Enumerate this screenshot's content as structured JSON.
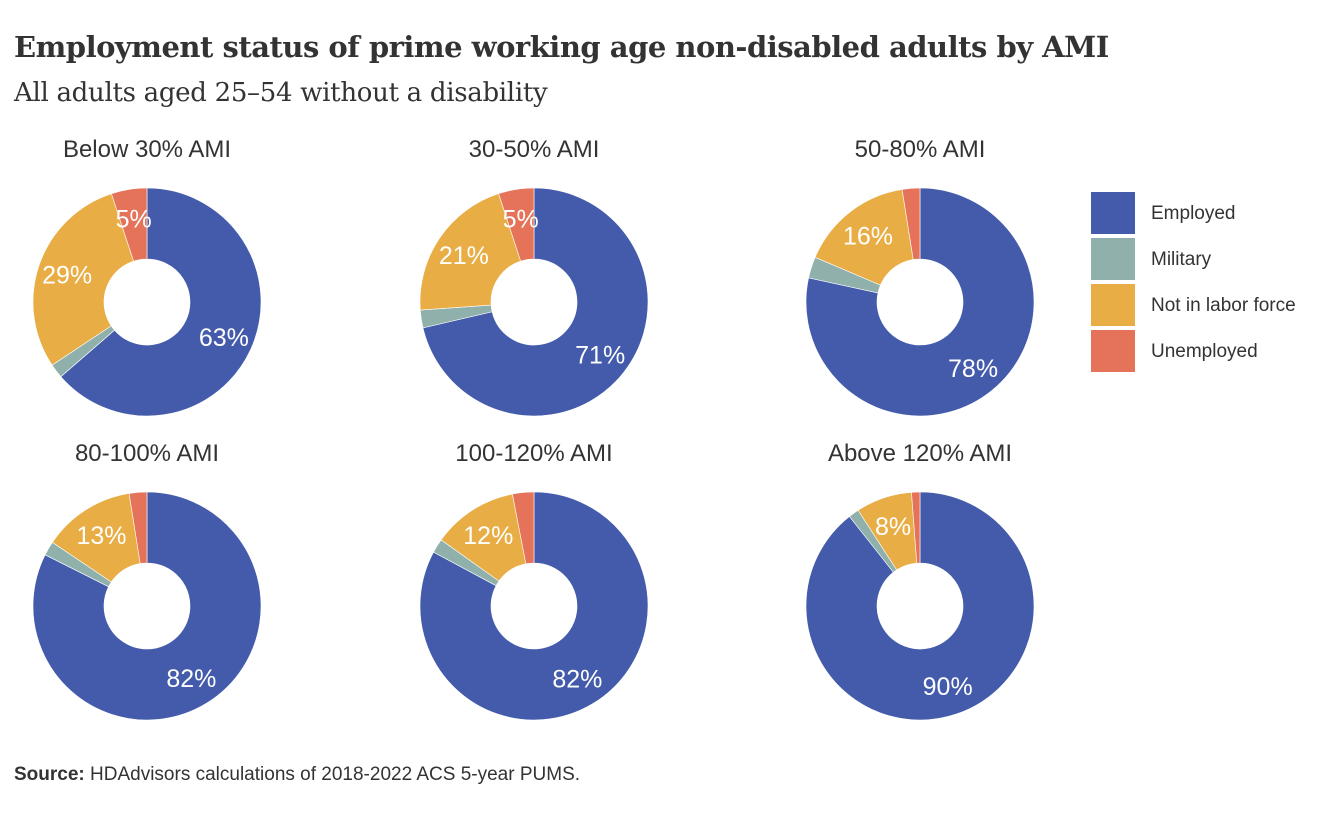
{
  "title": "Employment status of prime working age non-disabled adults by AMI",
  "subtitle": "All adults aged 25–54 without a disability",
  "source": {
    "label": "Source:",
    "text": " HDAdvisors  calculations of 2018-2022  ACS 5-year PUMS."
  },
  "colors": {
    "Employed": "#435BAA",
    "Military": "#8FB0AB",
    "Not in labor force": "#E8AD44",
    "Unemployed": "#E5735A"
  },
  "legend": [
    {
      "label": "Employed"
    },
    {
      "label": "Military"
    },
    {
      "label": "Not in labor force"
    },
    {
      "label": "Unemployed"
    }
  ],
  "chart_data": [
    {
      "type": "pie",
      "title": "Below 30% AMI",
      "categories": [
        "Employed",
        "Military",
        "Not in labor force",
        "Unemployed"
      ],
      "values": [
        63,
        2,
        29,
        5
      ],
      "data_labels": [
        "63%",
        "",
        "29%",
        "5%"
      ]
    },
    {
      "type": "pie",
      "title": "30-50% AMI",
      "categories": [
        "Employed",
        "Military",
        "Not in labor force",
        "Unemployed"
      ],
      "values": [
        71,
        2.5,
        21,
        5
      ],
      "data_labels": [
        "71%",
        "",
        "21%",
        "5%"
      ]
    },
    {
      "type": "pie",
      "title": "50-80% AMI",
      "categories": [
        "Employed",
        "Military",
        "Not in labor force",
        "Unemployed"
      ],
      "values": [
        78,
        3,
        16,
        2.5
      ],
      "data_labels": [
        "78%",
        "",
        "16%",
        ""
      ]
    },
    {
      "type": "pie",
      "title": "80-100% AMI",
      "categories": [
        "Employed",
        "Military",
        "Not in labor force",
        "Unemployed"
      ],
      "values": [
        82,
        2,
        13,
        2.5
      ],
      "data_labels": [
        "82%",
        "",
        "13%",
        ""
      ]
    },
    {
      "type": "pie",
      "title": "100-120% AMI",
      "categories": [
        "Employed",
        "Military",
        "Not in labor force",
        "Unemployed"
      ],
      "values": [
        82,
        2,
        12,
        3
      ],
      "data_labels": [
        "82%",
        "",
        "12%",
        ""
      ]
    },
    {
      "type": "pie",
      "title": "Above 120% AMI",
      "categories": [
        "Employed",
        "Military",
        "Not in labor force",
        "Unemployed"
      ],
      "values": [
        90,
        1.5,
        8,
        1.2
      ],
      "data_labels": [
        "90%",
        "",
        "8%",
        ""
      ]
    }
  ]
}
